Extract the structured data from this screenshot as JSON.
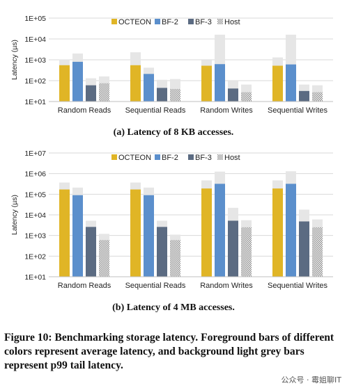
{
  "caption": "Figure 10: Benchmarking storage latency. Foreground bars of different colors represent average latency, and background light grey bars represent p99 tail latency.",
  "watermark": "公众号 · 霉姐聊IT",
  "colors": {
    "OCTEON": "#e0b526",
    "BF-2": "#5b8fcc",
    "BF-3": "#5b6b82",
    "Host": "#9a9a9a",
    "p99": "#e6e6e6",
    "grid": "#d9d9d9"
  },
  "chart_data": [
    {
      "type": "bar",
      "subtitle": "(a) Latency of 8 KB accesses.",
      "ylabel": "Latency (µs)",
      "yscale": "log",
      "ylim": [
        10,
        100000
      ],
      "yticks": [
        "1E+01",
        "1E+02",
        "1E+03",
        "1E+04",
        "1E+05"
      ],
      "legend_position": "top",
      "grid": true,
      "categories": [
        "Random Reads",
        "Sequential Reads",
        "Random Writes",
        "Sequential Writes"
      ],
      "series": [
        {
          "name": "OCTEON",
          "average": [
            550,
            550,
            520,
            520
          ],
          "p99": [
            1050,
            2300,
            950,
            1300
          ]
        },
        {
          "name": "BF-2",
          "average": [
            800,
            210,
            620,
            600
          ],
          "p99": [
            2000,
            420,
            16000,
            16000
          ]
        },
        {
          "name": "BF-3",
          "average": [
            60,
            45,
            42,
            32
          ],
          "p99": [
            130,
            110,
            95,
            65
          ]
        },
        {
          "name": "Host",
          "average": [
            75,
            40,
            28,
            28
          ],
          "p99": [
            160,
            120,
            65,
            60
          ]
        }
      ]
    },
    {
      "type": "bar",
      "subtitle": "(b) Latency of 4 MB accesses.",
      "ylabel": "Latency (µs)",
      "yscale": "log",
      "ylim": [
        10,
        10000000
      ],
      "yticks": [
        "1E+01",
        "1E+02",
        "1E+03",
        "1E+04",
        "1E+05",
        "1E+06",
        "1E+07"
      ],
      "legend_position": "top",
      "grid": true,
      "categories": [
        "Random Reads",
        "Sequential Reads",
        "Random Writes",
        "Sequential Writes"
      ],
      "series": [
        {
          "name": "OCTEON",
          "average": [
            170000,
            170000,
            190000,
            190000
          ],
          "p99": [
            370000,
            370000,
            470000,
            470000
          ]
        },
        {
          "name": "BF-2",
          "average": [
            90000,
            90000,
            320000,
            320000
          ],
          "p99": [
            210000,
            210000,
            1250000,
            1300000
          ]
        },
        {
          "name": "BF-3",
          "average": [
            2600,
            2600,
            5200,
            4800
          ],
          "p99": [
            5200,
            5200,
            22000,
            18000
          ]
        },
        {
          "name": "Host",
          "average": [
            600,
            600,
            2500,
            2500
          ],
          "p99": [
            1200,
            1100,
            5500,
            6000
          ]
        }
      ]
    }
  ]
}
